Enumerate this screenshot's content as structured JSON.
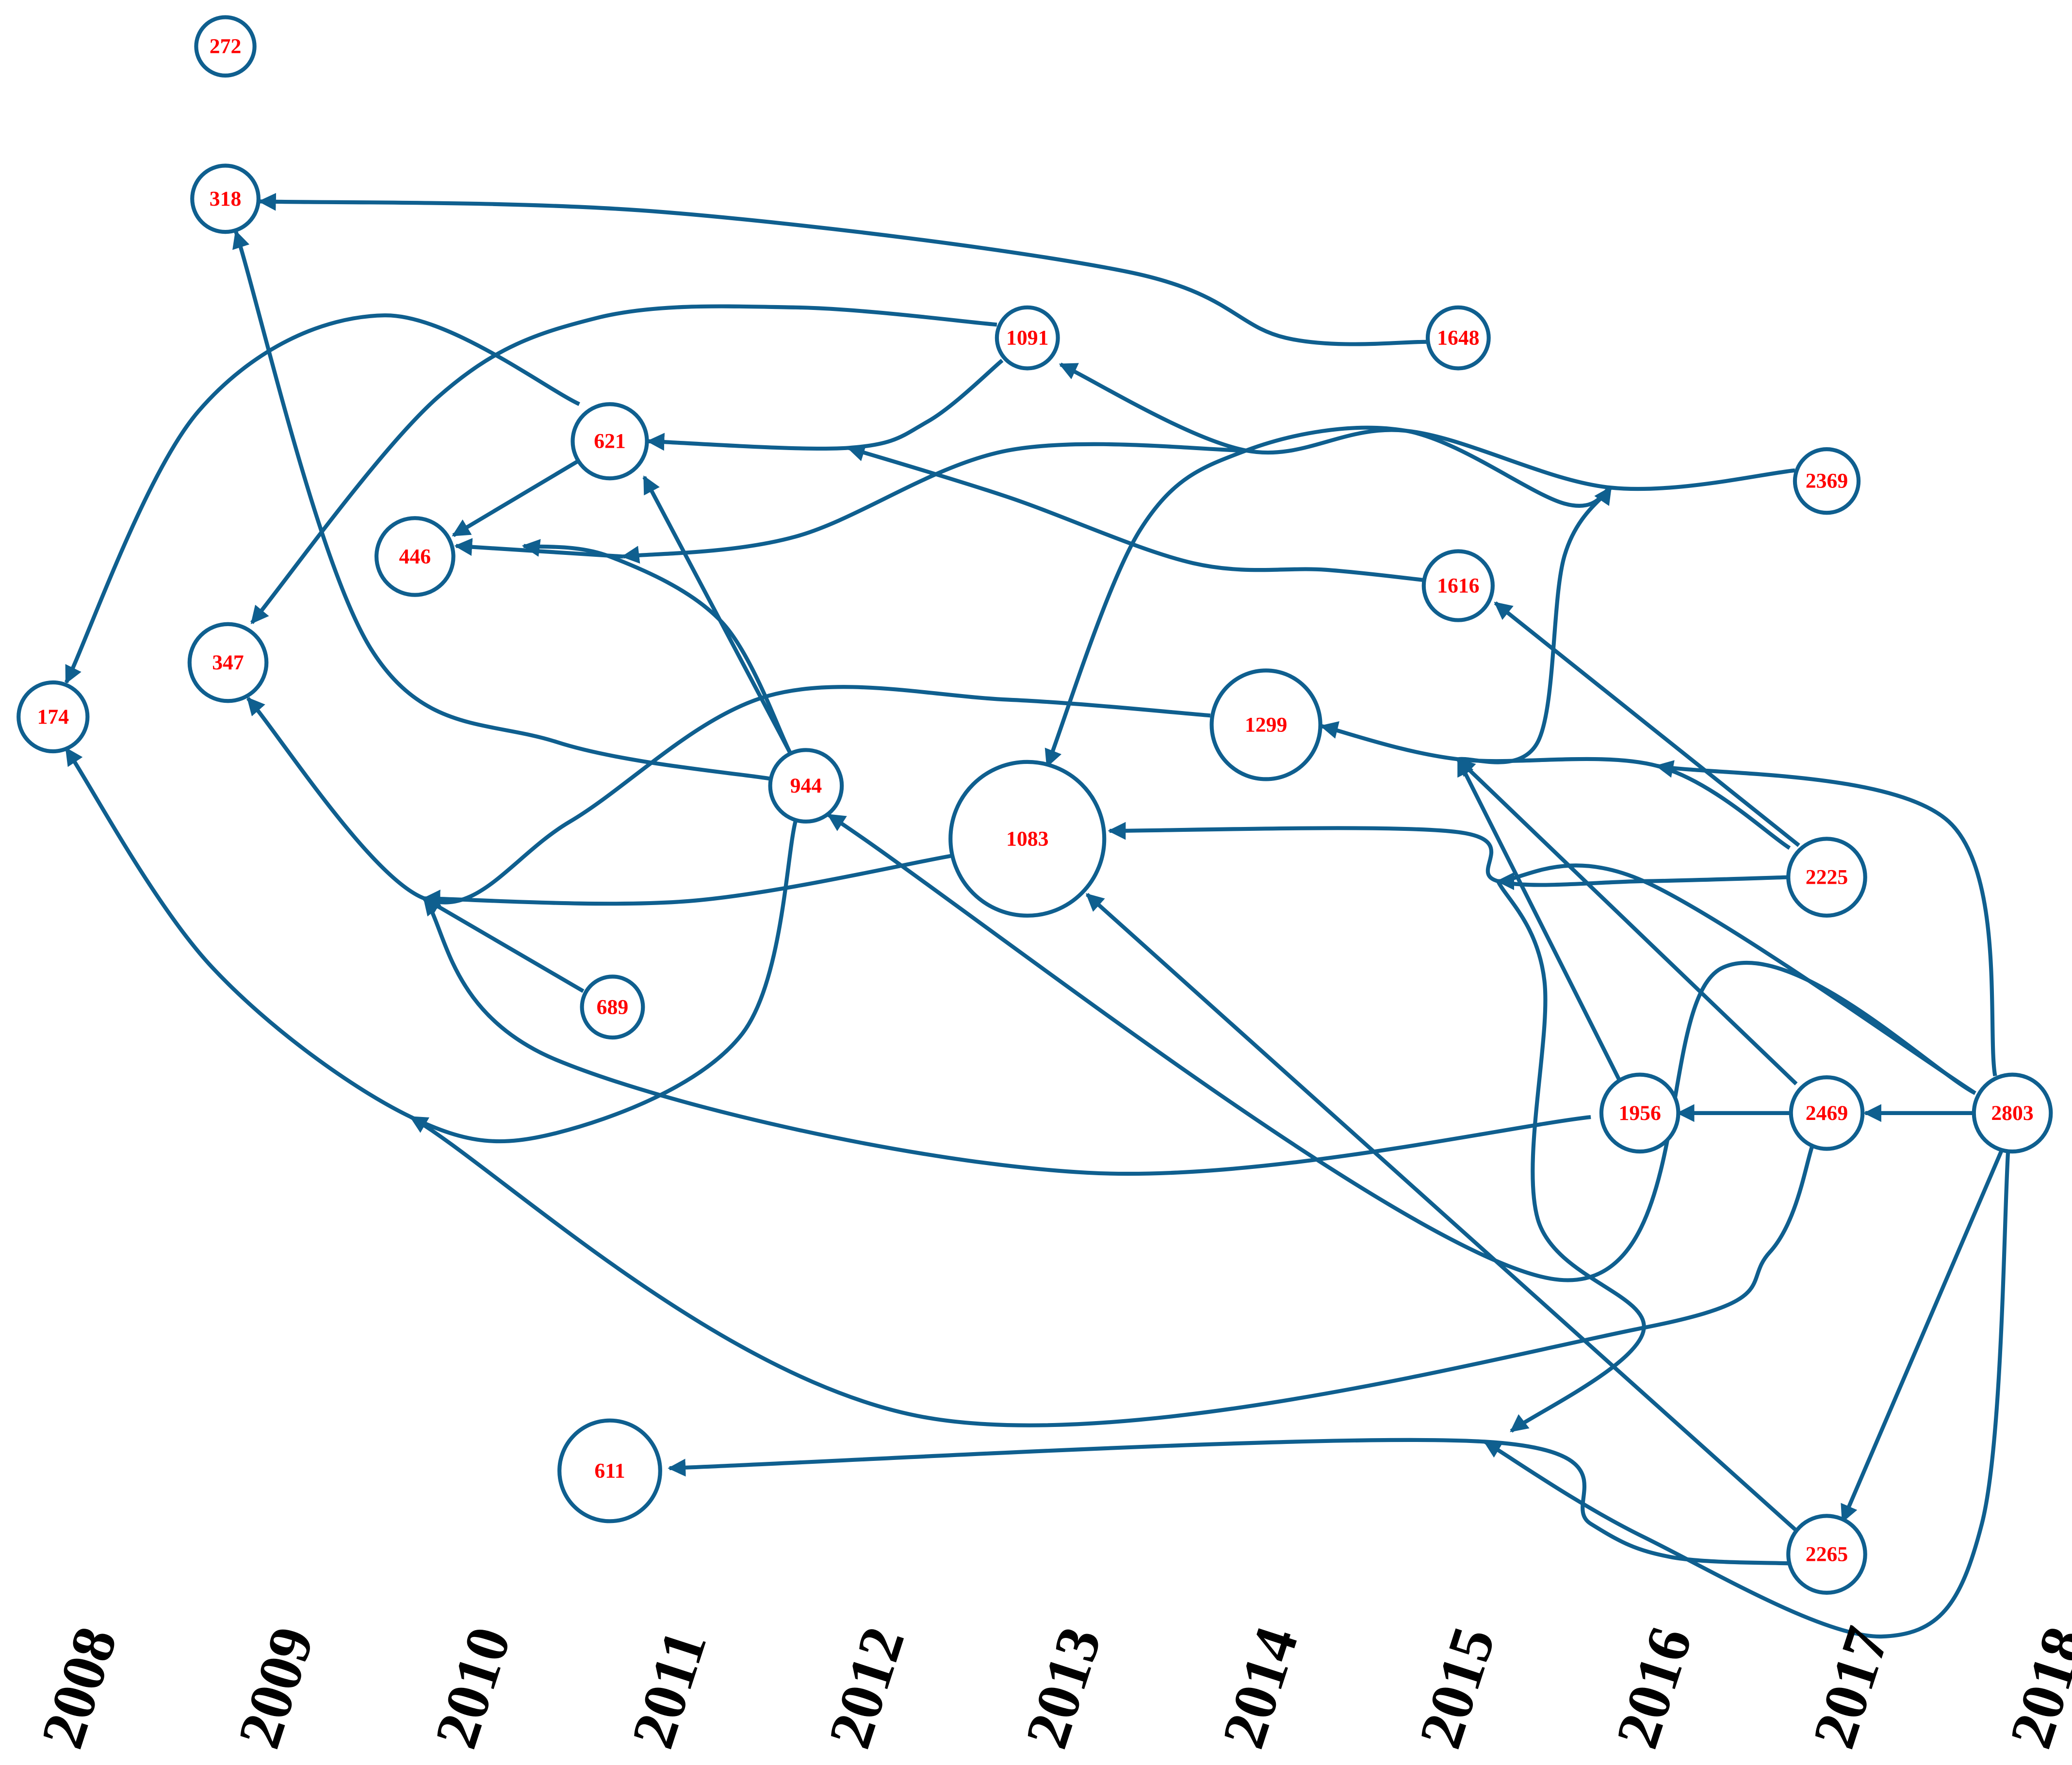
{
  "nodes": [
    {
      "label": "272"
    },
    {
      "label": "318"
    },
    {
      "label": "1091"
    },
    {
      "label": "1648"
    },
    {
      "label": "621"
    },
    {
      "label": "2369"
    },
    {
      "label": "446"
    },
    {
      "label": "1616"
    },
    {
      "label": "347"
    },
    {
      "label": "174"
    },
    {
      "label": "1299"
    },
    {
      "label": "944"
    },
    {
      "label": "1083"
    },
    {
      "label": "2225"
    },
    {
      "label": "689"
    },
    {
      "label": "1956"
    },
    {
      "label": "2469"
    },
    {
      "label": "2803"
    },
    {
      "label": "611"
    },
    {
      "label": "2265"
    }
  ],
  "years": [
    "2008",
    "2009",
    "2010",
    "2011",
    "2012",
    "2013",
    "2014",
    "2015",
    "2016",
    "2017",
    "2018"
  ]
}
